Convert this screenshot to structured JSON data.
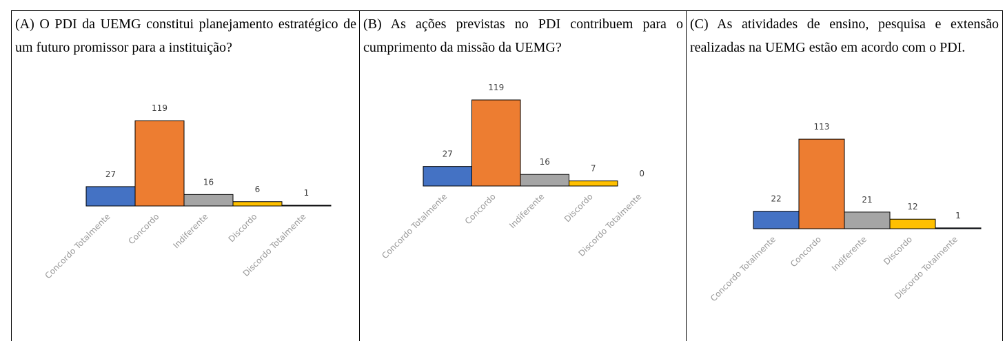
{
  "chart_data": [
    {
      "type": "bar",
      "title": "(A) O PDI da UEMG constitui planejamento estratégico de um futuro promissor para a instituição?",
      "categories": [
        "Concordo Totalmente",
        "Concordo",
        "Indiferente",
        "Discordo",
        "Discordo Totalmente"
      ],
      "values": [
        27,
        119,
        16,
        6,
        1
      ],
      "colors": [
        "#4472c4",
        "#ed7d31",
        "#a5a5a5",
        "#ffc000",
        "#264478"
      ]
    },
    {
      "type": "bar",
      "title": "(B) As ações previstas no PDI contribuem para o cumprimento da missão da UEMG?",
      "categories": [
        "Concordo Totalmente",
        "Concordo",
        "Indiferente",
        "Discordo",
        "Discordo Totalmente"
      ],
      "values": [
        27,
        119,
        16,
        7,
        0
      ],
      "colors": [
        "#4472c4",
        "#ed7d31",
        "#a5a5a5",
        "#ffc000",
        "#264478"
      ]
    },
    {
      "type": "bar",
      "title": "(C) As atividades de ensino, pesquisa e extensão realizadas na UEMG estão em acordo com o PDI.",
      "categories": [
        "Concordo Totalmente",
        "Concordo",
        "Indiferente",
        "Discordo",
        "Discordo Totalmente"
      ],
      "values": [
        22,
        113,
        21,
        12,
        1
      ],
      "colors": [
        "#4472c4",
        "#ed7d31",
        "#a5a5a5",
        "#ffc000",
        "#264478"
      ]
    }
  ]
}
